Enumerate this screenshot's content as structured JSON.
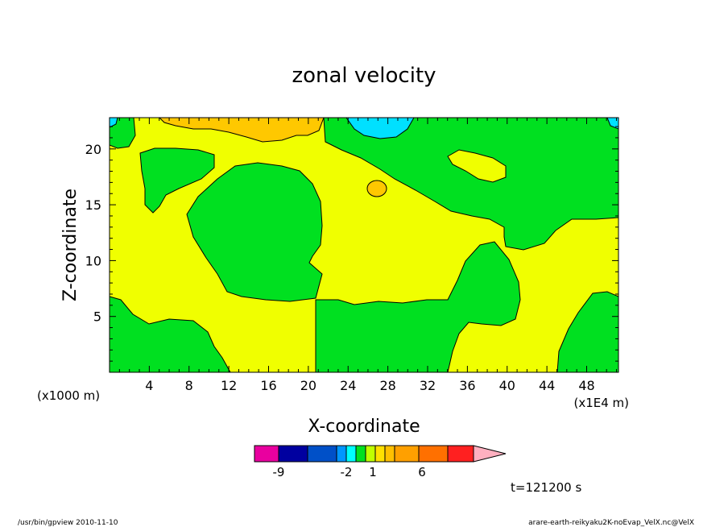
{
  "chart_data": {
    "type": "heatmap",
    "title": "zonal velocity",
    "xlabel": "X-coordinate",
    "ylabel": "Z-coordinate",
    "x_ticks": [
      "4",
      "8",
      "12",
      "16",
      "20",
      "24",
      "28",
      "32",
      "36",
      "40",
      "44",
      "48"
    ],
    "x_tick_values": [
      4,
      8,
      12,
      16,
      20,
      24,
      28,
      32,
      36,
      40,
      44,
      48
    ],
    "y_ticks": [
      "5",
      "10",
      "15",
      "20"
    ],
    "y_tick_values": [
      5,
      10,
      15,
      20
    ],
    "xlim": [
      0,
      51.2
    ],
    "ylim": [
      0,
      22.8
    ],
    "x_unit_left": "(x1000 m)",
    "x_unit_right": "(x1E4 m)",
    "colorbar_labels": [
      "-9",
      "-2",
      "1",
      "6"
    ],
    "colorbar_colors": [
      "#e9009f",
      "#8c00c8",
      "#0000a0",
      "#0050c8",
      "#0096ff",
      "#00ffff",
      "#00e020",
      "#c0ff00",
      "#ffe000",
      "#ffc000",
      "#ffa000",
      "#ff7000",
      "#ff2020",
      "#ff8080",
      "#ffb0c0"
    ],
    "fill_colors": {
      "green": "#00e020",
      "yellow": "#f0ff00",
      "orange": "#ffc800",
      "cyan": "#00e0ff"
    },
    "timestamp": "t=121200 s"
  },
  "footer": {
    "left": "/usr/bin/gpview  2010-11-10",
    "right": "arare-earth-reikyaku2K-noEvap_VelX.nc@VelX"
  }
}
